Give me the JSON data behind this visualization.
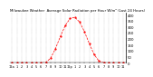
{
  "title": "Milwaukee Weather  Average Solar Radiation per Hour W/m² (Last 24 Hours)",
  "x_hours": [
    0,
    1,
    2,
    3,
    4,
    5,
    6,
    7,
    8,
    9,
    10,
    11,
    12,
    13,
    14,
    15,
    16,
    17,
    18,
    19,
    20,
    21,
    22,
    23
  ],
  "y_values": [
    0,
    0,
    0,
    0,
    0,
    0,
    0,
    5,
    40,
    120,
    220,
    310,
    370,
    380,
    340,
    260,
    160,
    70,
    15,
    2,
    0,
    0,
    0,
    0
  ],
  "line_color": "#ff0000",
  "line_style": "dashed",
  "marker": ".",
  "marker_size": 1.2,
  "linewidth": 0.5,
  "ylim": [
    0,
    420
  ],
  "yticks": [
    0,
    50,
    100,
    150,
    200,
    250,
    300,
    350,
    400
  ],
  "ytick_fontsize": 2.8,
  "xtick_fontsize": 2.5,
  "title_fontsize": 2.8,
  "grid_color": "#999999",
  "background_color": "#ffffff",
  "x_tick_labels": [
    "12a",
    "1",
    "2",
    "3",
    "4",
    "5",
    "6",
    "7",
    "8",
    "9",
    "10",
    "11",
    "12p",
    "1",
    "2",
    "3",
    "4",
    "5",
    "6",
    "7",
    "8",
    "9",
    "10",
    "11"
  ]
}
